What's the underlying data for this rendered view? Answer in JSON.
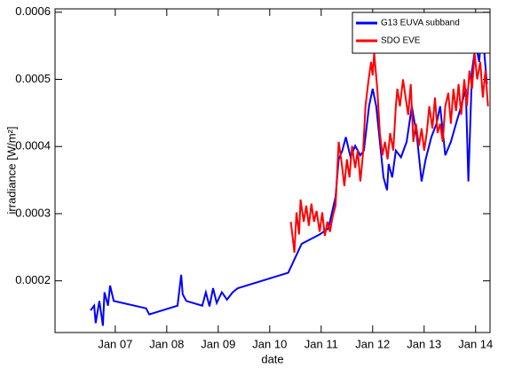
{
  "chart_data": {
    "type": "line",
    "xlabel": "date",
    "ylabel": "irradiance [W/m²]",
    "xlim": [
      2005.83,
      2014.28
    ],
    "xticks": [
      {
        "value": 2007,
        "label": "Jan 07"
      },
      {
        "value": 2008,
        "label": "Jan 08"
      },
      {
        "value": 2009,
        "label": "Jan 09"
      },
      {
        "value": 2010,
        "label": "Jan 10"
      },
      {
        "value": 2011,
        "label": "Jan 11"
      },
      {
        "value": 2012,
        "label": "Jan 12"
      },
      {
        "value": 2013,
        "label": "Jan 13"
      },
      {
        "value": 2014,
        "label": "Jan 14"
      }
    ],
    "ylim": [
      0.000123,
      0.000605
    ],
    "yticks": [
      0.0002,
      0.0003,
      0.0004,
      0.0005,
      0.0006
    ],
    "legend": "upper right",
    "series": [
      {
        "name": "G13 EUVA subband",
        "color": "#0000ff",
        "x": [
          2006.52,
          2006.59,
          2006.62,
          2006.69,
          2006.76,
          2006.79,
          2006.86,
          2006.9,
          2006.97,
          2007.6,
          2007.66,
          2008.21,
          2008.28,
          2008.31,
          2008.38,
          2008.69,
          2008.76,
          2008.83,
          2008.9,
          2008.97,
          2009.07,
          2009.17,
          2009.28,
          2009.38,
          2010.36,
          2010.62,
          2010.97,
          2011.14,
          2011.28,
          2011.34,
          2011.41,
          2011.48,
          2011.57,
          2011.66,
          2011.76,
          2011.83,
          2011.93,
          2012.0,
          2012.07,
          2012.21,
          2012.28,
          2012.31,
          2012.38,
          2012.45,
          2012.55,
          2012.66,
          2012.76,
          2012.86,
          2012.95,
          2013.03,
          2013.14,
          2013.24,
          2013.31,
          2013.41,
          2013.52,
          2013.62,
          2013.72,
          2013.81,
          2013.86,
          2013.93,
          2014.0,
          2014.07,
          2014.12,
          2014.17,
          2014.22
        ],
        "values": [
          0.000156,
          0.000163,
          0.000137,
          0.00017,
          0.000133,
          0.000183,
          0.000163,
          0.000193,
          0.00017,
          0.000159,
          0.00015,
          0.000163,
          0.000209,
          0.00018,
          0.00017,
          0.000163,
          0.000183,
          0.000162,
          0.000189,
          0.000167,
          0.000183,
          0.000172,
          0.000183,
          0.000189,
          0.000212,
          0.000255,
          0.000269,
          0.000278,
          0.000325,
          0.000381,
          0.000394,
          0.000414,
          0.000384,
          0.000401,
          0.000387,
          0.000394,
          0.00046,
          0.000486,
          0.00046,
          0.000354,
          0.000335,
          0.000374,
          0.000354,
          0.000394,
          0.000384,
          0.000407,
          0.00046,
          0.000414,
          0.000348,
          0.000381,
          0.000414,
          0.000434,
          0.00046,
          0.000387,
          0.000407,
          0.000434,
          0.00046,
          0.000486,
          0.000348,
          0.000513,
          0.000552,
          0.000526,
          0.000579,
          0.000539,
          0.000493
        ]
      },
      {
        "name": "SDO EVE",
        "color": "#ff0000",
        "x": [
          2010.41,
          2010.45,
          2010.48,
          2010.52,
          2010.57,
          2010.6,
          2010.66,
          2010.71,
          2010.76,
          2010.81,
          2010.86,
          2010.91,
          2010.97,
          2011.02,
          2011.07,
          2011.12,
          2011.17,
          2011.22,
          2011.28,
          2011.31,
          2011.34,
          2011.4,
          2011.45,
          2011.5,
          2011.55,
          2011.6,
          2011.66,
          2011.71,
          2011.76,
          2011.81,
          2011.86,
          2011.91,
          2011.97,
          2012.0,
          2012.03,
          2012.09,
          2012.14,
          2012.19,
          2012.24,
          2012.29,
          2012.34,
          2012.4,
          2012.45,
          2012.48,
          2012.53,
          2012.59,
          2012.64,
          2012.69,
          2012.74,
          2012.79,
          2012.84,
          2012.9,
          2012.95,
          2013.0,
          2013.05,
          2013.1,
          2013.16,
          2013.21,
          2013.26,
          2013.31,
          2013.36,
          2013.41,
          2013.47,
          2013.52,
          2013.57,
          2013.62,
          2013.67,
          2013.72,
          2013.78,
          2013.83,
          2013.88,
          2013.93,
          2013.98,
          2014.03,
          2014.09,
          2014.14,
          2014.19,
          2014.24
        ],
        "values": [
          0.000288,
          0.000262,
          0.000242,
          0.000302,
          0.000269,
          0.000321,
          0.000288,
          0.000312,
          0.000282,
          0.000315,
          0.000288,
          0.000304,
          0.000273,
          0.000302,
          0.000267,
          0.000288,
          0.000273,
          0.000295,
          0.000312,
          0.000361,
          0.000407,
          0.000374,
          0.000341,
          0.000381,
          0.000354,
          0.000401,
          0.000368,
          0.000394,
          0.000348,
          0.000387,
          0.00046,
          0.000493,
          0.000526,
          0.000506,
          0.000539,
          0.000486,
          0.00042,
          0.000387,
          0.000407,
          0.000381,
          0.00042,
          0.000394,
          0.00046,
          0.000486,
          0.00046,
          0.0005,
          0.000473,
          0.000447,
          0.000493,
          0.000407,
          0.000434,
          0.000401,
          0.000427,
          0.000394,
          0.00042,
          0.00046,
          0.000427,
          0.000473,
          0.00042,
          0.000434,
          0.000407,
          0.00046,
          0.00048,
          0.000434,
          0.000486,
          0.000453,
          0.000493,
          0.000447,
          0.0005,
          0.00046,
          0.000513,
          0.000486,
          0.000539,
          0.0005,
          0.000526,
          0.000473,
          0.000513,
          0.00046
        ]
      }
    ]
  }
}
